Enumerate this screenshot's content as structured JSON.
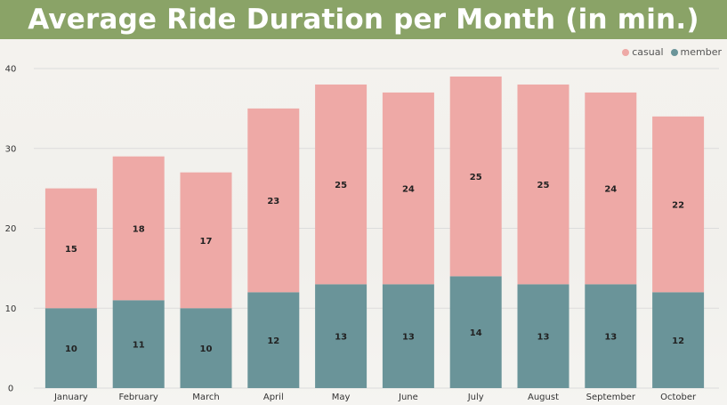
{
  "header": {
    "title": "Average Ride Duration per Month (in min.)"
  },
  "legend": {
    "placement": "top-right",
    "items": [
      {
        "label": "casual",
        "color": "#eea9a6"
      },
      {
        "label": "member",
        "color": "#6a9499"
      }
    ]
  },
  "chart_data": {
    "type": "bar",
    "stacked": true,
    "categories": [
      "January",
      "February",
      "March",
      "April",
      "May",
      "June",
      "July",
      "August",
      "September",
      "October"
    ],
    "series": [
      {
        "name": "member",
        "values": [
          10,
          11,
          10,
          12,
          13,
          13,
          14,
          13,
          13,
          12
        ],
        "color": "#6a9499"
      },
      {
        "name": "casual",
        "values": [
          15,
          18,
          17,
          23,
          25,
          24,
          25,
          25,
          24,
          22
        ],
        "color": "#eea9a6"
      }
    ],
    "title": "Average Ride Duration per Month (in min.)",
    "xlabel": "",
    "ylabel": "",
    "ylim": [
      0,
      40
    ],
    "yticks": [
      0,
      10,
      20,
      30,
      40
    ],
    "grid": true,
    "legend_position": "top-right"
  }
}
